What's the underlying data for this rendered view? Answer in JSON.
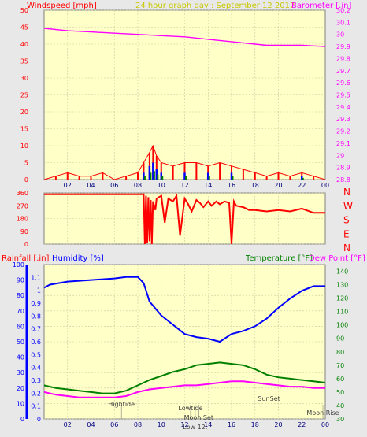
{
  "header": {
    "windspeed_label": "Windspeed [mph]",
    "title": "24 hour graph day : September 12 2017",
    "barometer_label": "Barometer [.in]"
  },
  "lower_header": {
    "rainfall_label": "Rainfall [.in]",
    "humidity_label": "Humidity [%]",
    "temperature_label": "Temperature [°F]",
    "dewpoint_label": "Dew Point [°F]"
  },
  "compass": [
    "N",
    "W",
    "S",
    "E",
    "N"
  ],
  "x_ticks": [
    "02",
    "04",
    "06",
    "08",
    "10",
    "12",
    "14",
    "16",
    "18",
    "20",
    "22",
    "00"
  ],
  "colors": {
    "panel_bg": "#ffffc8",
    "grid": "#c8c8a0",
    "wind": "#ff0000",
    "gust_blue": "#0000ff",
    "gust_green": "#008000",
    "barometer": "#ff00ff",
    "direction": "#ff0000",
    "humidity": "#0000ff",
    "temperature": "#008000",
    "dewpoint": "#ff00ff",
    "rain": "#0000ff",
    "title": "#c8c800"
  },
  "annotations": [
    {
      "label": "Hightide",
      "hour": 6.6
    },
    {
      "label": "Lowtide",
      "hour": 12.5
    },
    {
      "label": "Moon Set",
      "hour": 13.2
    },
    {
      "label": "Low 12:",
      "hour": 12.9
    },
    {
      "label": "SunSet",
      "hour": 19.2
    },
    {
      "label": "Moon Rise",
      "hour": 23.8
    }
  ],
  "chart_data": [
    {
      "type": "line",
      "name": "wind-barometer",
      "x_range": [
        0,
        24
      ],
      "y_left": {
        "label": "Windspeed [mph]",
        "ylim": [
          0,
          50
        ],
        "ticks": [
          0,
          5,
          10,
          15,
          20,
          25,
          30,
          35,
          40,
          45,
          50
        ]
      },
      "y_right": {
        "label": "Barometer [.in]",
        "ylim": [
          28.8,
          30.2
        ],
        "ticks": [
          "28.8",
          "28.9",
          "29",
          "29.1",
          "29.2",
          "29.3",
          "29.4",
          "29.5",
          "29.6",
          "29.7",
          "29.8",
          "29.9",
          "30",
          "30.1",
          "30.2"
        ]
      },
      "series": [
        {
          "name": "Barometer",
          "axis": "right",
          "x": [
            0,
            2,
            4,
            6,
            8,
            10,
            12,
            14,
            16,
            18,
            19,
            20,
            22,
            24
          ],
          "y": [
            30.05,
            30.03,
            30.02,
            30.01,
            30.0,
            29.99,
            29.98,
            29.96,
            29.94,
            29.92,
            29.91,
            29.91,
            29.91,
            29.9
          ]
        },
        {
          "name": "Windspeed",
          "axis": "left",
          "x": [
            0,
            1,
            2,
            3,
            4,
            5,
            6,
            7,
            8,
            8.5,
            9,
            9.3,
            9.6,
            10,
            11,
            12,
            13,
            14,
            15,
            16,
            17,
            18,
            19,
            20,
            21,
            22,
            23,
            24
          ],
          "y": [
            0,
            1,
            2,
            1,
            1,
            2,
            0,
            1,
            2,
            5,
            8,
            10,
            7,
            5,
            4,
            5,
            5,
            4,
            5,
            4,
            3,
            2,
            1,
            2,
            1,
            2,
            1,
            0
          ]
        },
        {
          "name": "Gust",
          "axis": "left",
          "x": [
            0,
            4,
            6,
            8,
            8.5,
            9,
            9.3,
            9.6,
            10,
            12,
            14,
            16,
            18,
            20,
            22,
            24
          ],
          "y": [
            0,
            0,
            0,
            0,
            2,
            4,
            5,
            3,
            2,
            2,
            2,
            2,
            0,
            0,
            1,
            0
          ]
        }
      ]
    },
    {
      "type": "line",
      "name": "wind-direction",
      "x_range": [
        0,
        24
      ],
      "y_left": {
        "ylim": [
          0,
          360
        ],
        "ticks": [
          0,
          90,
          180,
          270,
          360
        ]
      },
      "series": [
        {
          "name": "Direction",
          "x": [
            0,
            8.5,
            8.6,
            8.7,
            8.8,
            8.9,
            9.0,
            9.1,
            9.2,
            9.3,
            9.5,
            9.6,
            10,
            10.3,
            10.6,
            11,
            11.3,
            11.6,
            12,
            12.3,
            12.6,
            13,
            13.3,
            13.6,
            14,
            14.3,
            14.7,
            15,
            15.4,
            15.8,
            16,
            16.2,
            16.4,
            17,
            17.5,
            18,
            19,
            20,
            21,
            22,
            23,
            24
          ],
          "y": [
            350,
            350,
            0,
            340,
            10,
            330,
            20,
            310,
            0,
            300,
            240,
            320,
            340,
            150,
            320,
            300,
            340,
            60,
            320,
            280,
            230,
            310,
            290,
            260,
            300,
            270,
            300,
            280,
            300,
            290,
            0,
            300,
            270,
            260,
            240,
            240,
            230,
            240,
            230,
            250,
            220,
            220
          ]
        }
      ]
    },
    {
      "type": "line",
      "name": "rain-humidity-temperature",
      "x_range": [
        0,
        24
      ],
      "y_left": {
        "label": "Rainfall [.in]",
        "ylim": [
          0,
          1.2
        ],
        "ticks": [
          0,
          0.1,
          0.2,
          0.3,
          0.4,
          0.5,
          0.6,
          0.7,
          0.8,
          0.9,
          1,
          1.1
        ]
      },
      "y_humidity": {
        "label": "Humidity [%]",
        "ylim": [
          0,
          100
        ],
        "ticks": [
          0,
          10,
          20,
          30,
          40,
          50,
          60,
          70,
          80,
          90,
          100
        ]
      },
      "y_right": {
        "label": "Temperature [°F]",
        "ylim": [
          30,
          145
        ],
        "ticks": [
          30,
          40,
          50,
          60,
          70,
          80,
          90,
          100,
          110,
          120,
          130,
          140
        ]
      },
      "series": [
        {
          "name": "Humidity",
          "axis": "humidity",
          "x": [
            0,
            0.5,
            2,
            4,
            6,
            7,
            8,
            8.5,
            9,
            10,
            11,
            12,
            13,
            14,
            15,
            16,
            17,
            18,
            19,
            20,
            21,
            22,
            23,
            24
          ],
          "y": [
            85,
            87,
            89,
            90,
            91,
            92,
            92,
            88,
            76,
            67,
            61,
            55,
            53,
            52,
            50,
            55,
            57,
            60,
            65,
            72,
            78,
            83,
            86,
            86
          ]
        },
        {
          "name": "Temperature",
          "axis": "right",
          "x": [
            0,
            1,
            2,
            3,
            4,
            5,
            6,
            7,
            8,
            9,
            10,
            11,
            12,
            13,
            14,
            15,
            16,
            17,
            18,
            19,
            20,
            21,
            22,
            23,
            24
          ],
          "y": [
            55,
            53,
            52,
            51,
            50,
            49,
            49,
            51,
            55,
            59,
            62,
            65,
            67,
            70,
            71,
            72,
            71,
            70,
            67,
            63,
            61,
            60,
            59,
            58,
            57
          ]
        },
        {
          "name": "Dew Point",
          "axis": "right",
          "x": [
            0,
            1,
            2,
            3,
            4,
            5,
            6,
            7,
            8,
            9,
            10,
            11,
            12,
            13,
            14,
            15,
            16,
            17,
            18,
            19,
            20,
            21,
            22,
            23,
            24
          ],
          "y": [
            50,
            48,
            47,
            46,
            46,
            46,
            46,
            47,
            50,
            52,
            53,
            54,
            55,
            55,
            56,
            57,
            58,
            58,
            57,
            56,
            55,
            54,
            54,
            53,
            53
          ]
        },
        {
          "name": "Rainfall",
          "axis": "left",
          "x": [
            0,
            24
          ],
          "y": [
            0,
            0
          ]
        }
      ]
    }
  ]
}
